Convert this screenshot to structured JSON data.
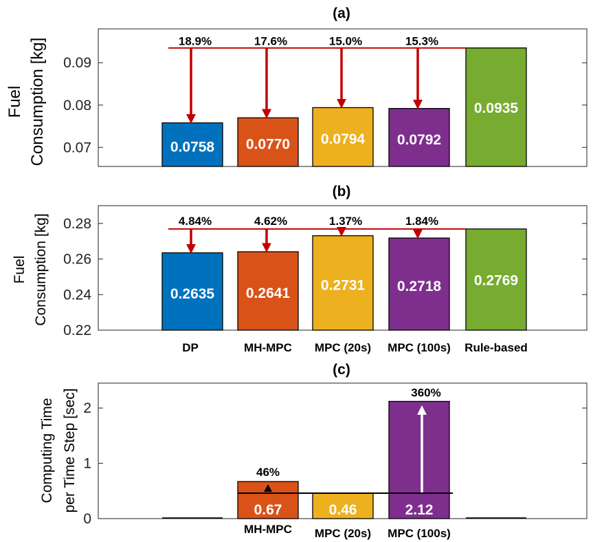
{
  "chart_data": [
    {
      "type": "bar",
      "title": "(a)",
      "ylabel_line1": "Fuel",
      "ylabel_line2": "Consumption [kg]",
      "ylim": [
        0.0655,
        0.098
      ],
      "yticks": [
        0.07,
        0.08,
        0.09
      ],
      "ytick_labels": [
        "0.07",
        "0.08",
        "0.09"
      ],
      "categories": [
        "DP",
        "MH-MPC",
        "MPC (20s)",
        "MPC (100s)",
        "Rule-based"
      ],
      "values": [
        0.0758,
        0.077,
        0.0794,
        0.0792,
        0.0935
      ],
      "value_labels": [
        "0.0758",
        "0.0770",
        "0.0794",
        "0.0792",
        "0.0935"
      ],
      "reference_value": 0.0935,
      "reductions": [
        "18.9%",
        "17.6%",
        "15.0%",
        "15.3%"
      ]
    },
    {
      "type": "bar",
      "title": "(b)",
      "ylabel_line1": "Fuel",
      "ylabel_line2": "Consumption [kg]",
      "ylim": [
        0.22,
        0.29
      ],
      "yticks": [
        0.22,
        0.24,
        0.26,
        0.28
      ],
      "ytick_labels": [
        "0.22",
        "0.24",
        "0.26",
        "0.28"
      ],
      "categories": [
        "DP",
        "MH-MPC",
        "MPC (20s)",
        "MPC (100s)",
        "Rule-based"
      ],
      "values": [
        0.2635,
        0.2641,
        0.2731,
        0.2718,
        0.2769
      ],
      "value_labels": [
        "0.2635",
        "0.2641",
        "0.2731",
        "0.2718",
        "0.2769"
      ],
      "reference_value": 0.2769,
      "reductions": [
        "4.84%",
        "4.62%",
        "1.37%",
        "1.84%"
      ]
    },
    {
      "type": "bar",
      "title": "(c)",
      "ylabel_line1": "Computing Time",
      "ylabel_line2": "per Time Step [sec]",
      "ylim": [
        0,
        2.45
      ],
      "yticks": [
        0,
        1,
        2
      ],
      "ytick_labels": [
        "0",
        "1",
        "2"
      ],
      "categories": [
        "MH-MPC",
        "MPC (20s)",
        "MPC (100s)"
      ],
      "values": [
        0.67,
        0.46,
        2.12
      ],
      "value_labels": [
        "0.67",
        "0.46",
        "2.12"
      ],
      "reference_value": 0.46,
      "increases": [
        "46%",
        "360%"
      ]
    }
  ],
  "colors": {
    "dp": "#0072BD",
    "mh_mpc": "#D95319",
    "mpc_20": "#EDB120",
    "mpc_100": "#7E2F8E",
    "rule_based": "#77AC30",
    "arrow_red": "#C00000"
  }
}
